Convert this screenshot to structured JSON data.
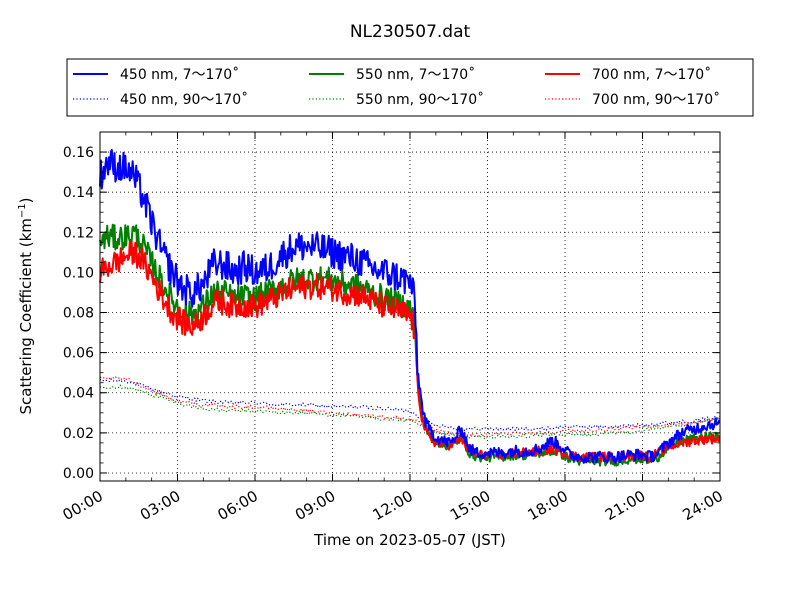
{
  "chart_data": {
    "type": "line",
    "title": "NL230507.dat",
    "xlabel": "Time on 2023-05-07 (JST)",
    "ylabel": "Scattering Coefficient (km",
    "ylabel_sup": "−1",
    "ylabel_end": ")",
    "x_unit": "hours",
    "xlim": [
      0,
      24
    ],
    "ylim": [
      -0.004,
      0.17
    ],
    "grid": true,
    "legend_position": "top",
    "x_ticks": [
      0,
      3,
      6,
      9,
      12,
      15,
      18,
      21,
      24
    ],
    "x_tick_labels": [
      "00:00",
      "03:00",
      "06:00",
      "09:00",
      "12:00",
      "15:00",
      "18:00",
      "21:00",
      "24:00"
    ],
    "y_ticks": [
      0.0,
      0.02,
      0.04,
      0.06,
      0.08,
      0.1,
      0.12,
      0.14,
      0.16
    ],
    "y_tick_labels": [
      "0.00",
      "0.02",
      "0.04",
      "0.06",
      "0.08",
      "0.10",
      "0.12",
      "0.14",
      "0.16"
    ],
    "series": [
      {
        "name": "450 nm, 7～170˚",
        "color": "#0000ff",
        "style": "solid",
        "x": [
          0,
          0.3,
          0.6,
          1.0,
          1.3,
          1.6,
          2.0,
          2.4,
          2.8,
          3.2,
          3.6,
          4.0,
          4.4,
          4.8,
          5.2,
          5.6,
          6.0,
          6.5,
          7.0,
          7.5,
          8.0,
          8.5,
          9.0,
          9.5,
          10.0,
          10.5,
          11.0,
          11.5,
          12.0,
          12.1,
          12.2,
          12.3,
          12.45,
          12.6,
          12.8,
          13.0,
          13.3,
          13.6,
          14.0,
          14.3,
          14.6,
          15.0,
          15.5,
          16.0,
          16.5,
          17.0,
          17.5,
          17.8,
          18.2,
          18.6,
          19.0,
          19.5,
          20.0,
          20.5,
          21.0,
          21.3,
          21.6,
          22.0,
          22.5,
          23.0,
          23.5,
          24.0
        ],
        "y": [
          0.148,
          0.155,
          0.153,
          0.152,
          0.148,
          0.14,
          0.125,
          0.11,
          0.1,
          0.092,
          0.09,
          0.094,
          0.104,
          0.104,
          0.1,
          0.103,
          0.1,
          0.102,
          0.108,
          0.113,
          0.113,
          0.112,
          0.11,
          0.108,
          0.106,
          0.102,
          0.1,
          0.098,
          0.095,
          0.093,
          0.08,
          0.05,
          0.035,
          0.025,
          0.021,
          0.018,
          0.016,
          0.015,
          0.022,
          0.012,
          0.01,
          0.01,
          0.01,
          0.011,
          0.011,
          0.012,
          0.016,
          0.014,
          0.009,
          0.008,
          0.008,
          0.008,
          0.008,
          0.009,
          0.009,
          0.008,
          0.01,
          0.015,
          0.02,
          0.022,
          0.024,
          0.025
        ],
        "noise": 0.005
      },
      {
        "name": "550 nm, 7～170˚",
        "color": "#008000",
        "style": "solid",
        "x": [
          0,
          0.3,
          0.6,
          1.0,
          1.3,
          1.6,
          2.0,
          2.4,
          2.8,
          3.2,
          3.6,
          4.0,
          4.4,
          4.8,
          5.2,
          5.6,
          6.0,
          6.5,
          7.0,
          7.5,
          8.0,
          8.5,
          9.0,
          9.5,
          10.0,
          10.5,
          11.0,
          11.5,
          12.0,
          12.1,
          12.2,
          12.3,
          12.45,
          12.6,
          12.8,
          13.0,
          13.3,
          13.6,
          14.0,
          14.3,
          14.6,
          15.0,
          15.5,
          16.0,
          16.5,
          17.0,
          17.5,
          17.8,
          18.2,
          18.6,
          19.0,
          19.5,
          20.0,
          20.5,
          21.0,
          21.3,
          21.6,
          22.0,
          22.5,
          23.0,
          23.5,
          24.0
        ],
        "y": [
          0.115,
          0.118,
          0.117,
          0.118,
          0.12,
          0.115,
          0.105,
          0.095,
          0.086,
          0.08,
          0.079,
          0.083,
          0.09,
          0.09,
          0.087,
          0.088,
          0.087,
          0.09,
          0.093,
          0.096,
          0.097,
          0.097,
          0.096,
          0.094,
          0.093,
          0.09,
          0.087,
          0.085,
          0.082,
          0.08,
          0.07,
          0.045,
          0.03,
          0.022,
          0.018,
          0.016,
          0.014,
          0.014,
          0.018,
          0.01,
          0.008,
          0.008,
          0.008,
          0.009,
          0.009,
          0.01,
          0.011,
          0.01,
          0.007,
          0.006,
          0.006,
          0.006,
          0.006,
          0.007,
          0.007,
          0.006,
          0.008,
          0.013,
          0.016,
          0.017,
          0.018,
          0.018
        ],
        "noise": 0.004
      },
      {
        "name": "700 nm, 7～170˚",
        "color": "#ff0000",
        "style": "solid",
        "x": [
          0,
          0.3,
          0.6,
          1.0,
          1.3,
          1.6,
          2.0,
          2.4,
          2.8,
          3.2,
          3.6,
          4.0,
          4.4,
          4.8,
          5.2,
          5.6,
          6.0,
          6.5,
          7.0,
          7.5,
          8.0,
          8.5,
          9.0,
          9.5,
          10.0,
          10.5,
          11.0,
          11.5,
          12.0,
          12.1,
          12.2,
          12.3,
          12.45,
          12.6,
          12.8,
          13.0,
          13.3,
          13.6,
          14.0,
          14.3,
          14.6,
          15.0,
          15.5,
          16.0,
          16.5,
          17.0,
          17.5,
          17.8,
          18.2,
          18.6,
          19.0,
          19.5,
          20.0,
          20.5,
          21.0,
          21.3,
          21.6,
          22.0,
          22.5,
          23.0,
          23.5,
          24.0
        ],
        "y": [
          0.1,
          0.103,
          0.105,
          0.108,
          0.11,
          0.107,
          0.098,
          0.088,
          0.08,
          0.075,
          0.073,
          0.078,
          0.085,
          0.085,
          0.083,
          0.084,
          0.083,
          0.086,
          0.089,
          0.092,
          0.093,
          0.093,
          0.092,
          0.09,
          0.089,
          0.086,
          0.083,
          0.081,
          0.078,
          0.076,
          0.066,
          0.043,
          0.028,
          0.021,
          0.017,
          0.015,
          0.014,
          0.014,
          0.017,
          0.011,
          0.009,
          0.009,
          0.009,
          0.01,
          0.01,
          0.011,
          0.012,
          0.011,
          0.009,
          0.008,
          0.008,
          0.008,
          0.008,
          0.009,
          0.009,
          0.008,
          0.01,
          0.013,
          0.015,
          0.016,
          0.017,
          0.017
        ],
        "noise": 0.004
      },
      {
        "name": "450 nm, 90～170˚",
        "color": "#0000ff",
        "style": "dotted",
        "x": [
          0,
          1,
          2,
          3,
          4,
          5,
          6,
          7,
          8,
          9,
          10,
          11,
          12,
          12.5,
          13,
          14,
          15,
          16,
          17,
          18,
          19,
          20,
          21,
          22,
          23,
          24
        ],
        "y": [
          0.046,
          0.046,
          0.042,
          0.038,
          0.036,
          0.035,
          0.035,
          0.034,
          0.034,
          0.033,
          0.033,
          0.032,
          0.031,
          0.027,
          0.024,
          0.022,
          0.022,
          0.022,
          0.022,
          0.023,
          0.023,
          0.023,
          0.024,
          0.025,
          0.026,
          0.028
        ],
        "noise": 0.0015
      },
      {
        "name": "550 nm, 90～170˚",
        "color": "#008000",
        "style": "dotted",
        "x": [
          0,
          1,
          2,
          3,
          4,
          5,
          6,
          7,
          8,
          9,
          10,
          11,
          12,
          12.5,
          13,
          14,
          15,
          16,
          17,
          18,
          19,
          20,
          21,
          22,
          23,
          24
        ],
        "y": [
          0.043,
          0.043,
          0.039,
          0.035,
          0.032,
          0.031,
          0.031,
          0.03,
          0.03,
          0.029,
          0.028,
          0.027,
          0.026,
          0.023,
          0.02,
          0.018,
          0.018,
          0.018,
          0.019,
          0.019,
          0.019,
          0.02,
          0.021,
          0.023,
          0.025,
          0.027
        ],
        "noise": 0.0015
      },
      {
        "name": "700 nm, 90～170˚",
        "color": "#ff0000",
        "style": "dotted",
        "x": [
          0,
          1,
          2,
          3,
          4,
          5,
          6,
          7,
          8,
          9,
          10,
          11,
          12,
          12.5,
          13,
          14,
          15,
          16,
          17,
          18,
          19,
          20,
          21,
          22,
          23,
          24
        ],
        "y": [
          0.047,
          0.047,
          0.041,
          0.036,
          0.034,
          0.033,
          0.033,
          0.032,
          0.031,
          0.03,
          0.029,
          0.028,
          0.027,
          0.024,
          0.021,
          0.019,
          0.019,
          0.02,
          0.02,
          0.021,
          0.021,
          0.022,
          0.023,
          0.024,
          0.025,
          0.027
        ],
        "noise": 0.0015
      }
    ]
  },
  "legend": {
    "columns": 3,
    "order": [
      0,
      3,
      1,
      4,
      2,
      5
    ]
  }
}
